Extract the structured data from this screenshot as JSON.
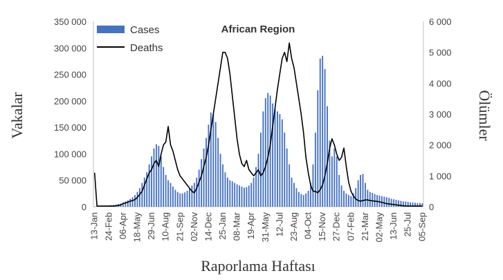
{
  "chart_data": {
    "type": "bar+line",
    "title": "African Region",
    "xlabel": "Raporlama Haftası",
    "ylabel_left": "Vakalar",
    "ylabel_right": "Ölümler",
    "ylim_left": [
      0,
      350000
    ],
    "ylim_right": [
      0,
      6000
    ],
    "yticks_left": [
      0,
      50000,
      100000,
      150000,
      200000,
      250000,
      300000,
      350000
    ],
    "yticks_left_labels": [
      "0",
      "50 000",
      "100 000",
      "150 000",
      "200 000",
      "250 000",
      "300 000",
      "350 000"
    ],
    "yticks_right": [
      0,
      1000,
      2000,
      3000,
      4000,
      5000,
      6000
    ],
    "yticks_right_labels": [
      "0",
      "1 000",
      "2 000",
      "3 000",
      "4 000",
      "5 000",
      "6 000"
    ],
    "xtick_labels": [
      "13-Jan",
      "24-Feb",
      "06-Apr",
      "18-May",
      "29-Jun",
      "10-Aug",
      "21-Sep",
      "02-Nov",
      "14-Dec",
      "25-Jan",
      "08-Mar",
      "19-Apr",
      "31-May",
      "12-Jul",
      "23-Aug",
      "04-Oct",
      "15-Nov",
      "27-Dec",
      "07-Feb",
      "21-Mar",
      "02-May",
      "13-Jun",
      "25-Jul",
      "05-Sep"
    ],
    "xtick_week_index": [
      0,
      6,
      12,
      18,
      24,
      30,
      36,
      42,
      48,
      54,
      60,
      66,
      72,
      78,
      84,
      90,
      96,
      102,
      108,
      114,
      120,
      126,
      132,
      138
    ],
    "legend": [
      "Cases",
      "Deaths"
    ],
    "legend_position": "top-left",
    "series": [
      {
        "name": "Cases",
        "type": "bar",
        "axis": "left",
        "color": "#4472c4",
        "values": [
          500,
          700,
          1000,
          1200,
          1500,
          2000,
          2500,
          3000,
          3500,
          4000,
          5000,
          6000,
          8000,
          10000,
          12000,
          15000,
          18000,
          22000,
          28000,
          35000,
          45000,
          55000,
          65000,
          80000,
          95000,
          110000,
          118000,
          115000,
          95000,
          75000,
          60000,
          50000,
          45000,
          38000,
          32000,
          28000,
          25000,
          25000,
          27000,
          30000,
          35000,
          40000,
          45000,
          55000,
          70000,
          90000,
          110000,
          130000,
          155000,
          178000,
          175000,
          160000,
          130000,
          100000,
          80000,
          65000,
          55000,
          50000,
          48000,
          45000,
          42000,
          40000,
          38000,
          36000,
          37000,
          40000,
          45000,
          55000,
          75000,
          100000,
          140000,
          180000,
          205000,
          215000,
          210000,
          195000,
          185000,
          180000,
          175000,
          165000,
          140000,
          110000,
          80000,
          55000,
          45000,
          35000,
          28000,
          24000,
          22000,
          25000,
          30000,
          45000,
          80000,
          140000,
          220000,
          280000,
          285000,
          260000,
          190000,
          125000,
          95000,
          110000,
          95000,
          60000,
          40000,
          30000,
          25000,
          22000,
          20000,
          25000,
          35000,
          50000,
          60000,
          62000,
          45000,
          32000,
          28000,
          26000,
          24000,
          22000,
          21000,
          20000,
          19000,
          18000,
          17000,
          15000,
          14000,
          13000,
          12000,
          11000,
          10000,
          10000,
          9000,
          8000,
          8000,
          7500,
          7000,
          7000,
          6500
        ]
      },
      {
        "name": "Deaths",
        "type": "line",
        "axis": "right",
        "color": "#000000",
        "values": [
          1100,
          20,
          20,
          20,
          20,
          20,
          20,
          20,
          20,
          30,
          40,
          60,
          100,
          120,
          150,
          180,
          200,
          230,
          300,
          400,
          500,
          700,
          900,
          1100,
          1200,
          1400,
          1500,
          1300,
          1700,
          2000,
          2100,
          2600,
          2000,
          1800,
          1500,
          1200,
          1000,
          900,
          800,
          700,
          600,
          500,
          450,
          600,
          800,
          1000,
          1300,
          1600,
          2000,
          2500,
          3000,
          3500,
          4000,
          4500,
          5000,
          5000,
          4800,
          4300,
          3600,
          2900,
          2200,
          1700,
          1400,
          1300,
          1500,
          1200,
          1100,
          1000,
          1100,
          1200,
          1000,
          1100,
          1300,
          1600,
          2000,
          2600,
          3200,
          3800,
          4300,
          4800,
          5000,
          4700,
          5300,
          4800,
          4500,
          4000,
          3500,
          3000,
          2400,
          1600,
          1100,
          700,
          500,
          500,
          450,
          550,
          700,
          1000,
          1400,
          1900,
          2200,
          2000,
          1700,
          1500,
          1600,
          1900,
          1300,
          800,
          500,
          350,
          250,
          200,
          180,
          200,
          220,
          220,
          200,
          190,
          180,
          170,
          160,
          140,
          120,
          100,
          90,
          80,
          70,
          60,
          50,
          40,
          30,
          25,
          20,
          20,
          20,
          20,
          20,
          20,
          20
        ]
      }
    ]
  }
}
